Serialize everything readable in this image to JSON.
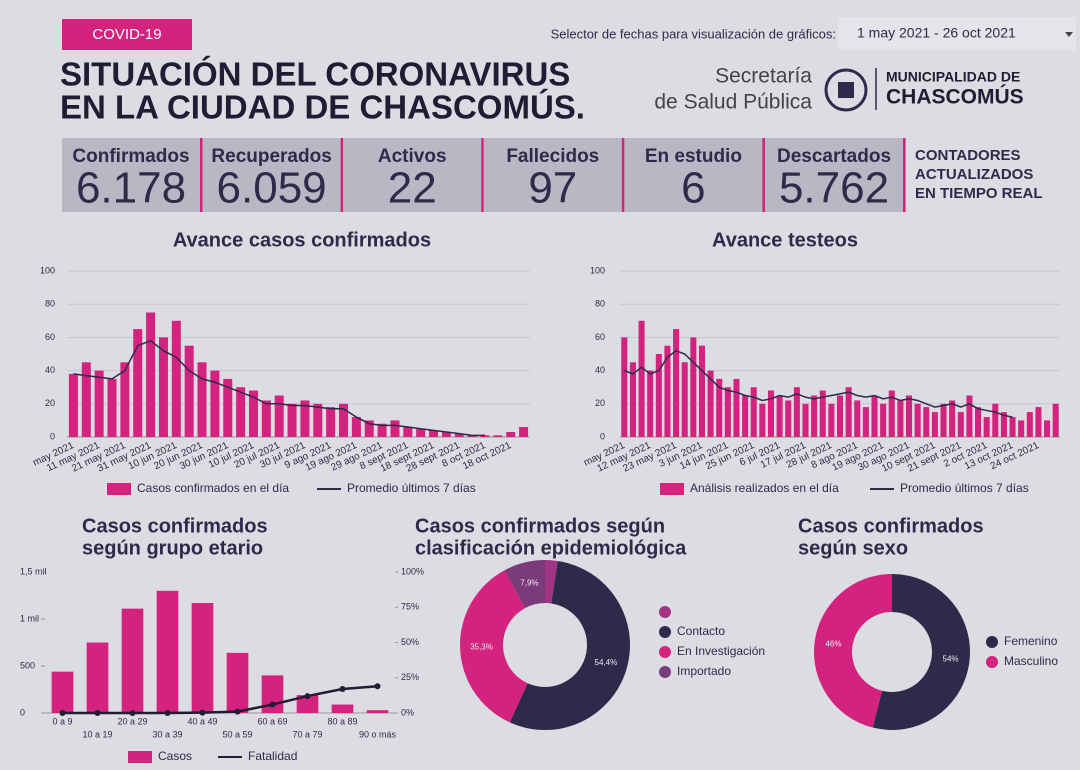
{
  "header": {
    "badge": "COVID-19",
    "title": [
      "SITUACIÓN DEL CORONAVIRUS",
      "EN LA CIUDAD DE CHASCOMÚS."
    ],
    "selector_label": "Selector de fechas para visualización de gráficos:",
    "date_range": "1 may 2021 - 26 oct 2021",
    "logo": [
      "Secretaría",
      "de Salud Pública",
      "MUNICIPALIDAD DE",
      "CHASCOMÚS"
    ]
  },
  "counters": {
    "items": [
      {
        "label": "Confirmados",
        "value": "6.178"
      },
      {
        "label": "Recuperados",
        "value": "6.059"
      },
      {
        "label": "Activos",
        "value": "22"
      },
      {
        "label": "Fallecidos",
        "value": "97"
      },
      {
        "label": "En estudio",
        "value": "6"
      },
      {
        "label": "Descartados",
        "value": "5.762"
      }
    ],
    "note": [
      "CONTADORES",
      "ACTUALIZADOS",
      "EN TIEMPO REAL"
    ]
  },
  "chart_data": [
    {
      "type": "combo",
      "title": [
        "Avance casos confirmados"
      ],
      "grid": true,
      "ylim": [
        0,
        100
      ],
      "yticks": [
        0,
        20,
        40,
        60,
        80,
        100
      ],
      "categories": [
        "may 2021",
        null,
        "11 may 2021",
        null,
        "21 may 2021",
        null,
        "31 may 2021",
        null,
        "10 jun 2021",
        null,
        "20 jun 2021",
        null,
        "30 jun 2021",
        null,
        "10 jul 2021",
        null,
        "20 jul 2021",
        null,
        "30 jul 2021",
        null,
        "9 ago 2021",
        null,
        "19 ago 2021",
        null,
        "29 ago 2021",
        null,
        "8 sept 2021",
        null,
        "18 sept 2021",
        null,
        "28 sept 2021",
        null,
        "8 oct 2021",
        null,
        "18 oct 2021",
        null
      ],
      "series": [
        {
          "name": "Casos confirmados en el día",
          "type": "bar",
          "color": "#d4237e",
          "values": [
            38,
            45,
            40,
            35,
            45,
            65,
            75,
            60,
            70,
            55,
            45,
            40,
            35,
            30,
            28,
            22,
            25,
            20,
            22,
            20,
            18,
            20,
            12,
            10,
            8,
            10,
            6,
            5,
            4,
            3,
            2,
            1,
            1,
            1,
            3,
            6
          ]
        },
        {
          "name": "Promedio últimos 7 días",
          "type": "line",
          "color": "#2d2a4a",
          "values": [
            38,
            37,
            36,
            35,
            40,
            55,
            58,
            52,
            48,
            40,
            35,
            33,
            30,
            27,
            24,
            20,
            20,
            19,
            19,
            18,
            17,
            17,
            12,
            8,
            7,
            7,
            6,
            5,
            4,
            3,
            2,
            1,
            1,
            null,
            null,
            null
          ]
        }
      ]
    },
    {
      "type": "combo",
      "title": [
        "Avance testeos"
      ],
      "grid": true,
      "ylim": [
        0,
        100
      ],
      "yticks": [
        0,
        20,
        40,
        60,
        80,
        100
      ],
      "categories": [
        "may 2021",
        null,
        null,
        "12 may 2021",
        null,
        null,
        "23 may 2021",
        null,
        null,
        "3 jun 2021",
        null,
        null,
        "14 jun 2021",
        null,
        null,
        "25 jun 2021",
        null,
        null,
        "6 jul 2021",
        null,
        null,
        "17 jul 2021",
        null,
        null,
        "28 jul 2021",
        null,
        null,
        "8 ago 2021",
        null,
        null,
        "19 ago 2021",
        null,
        null,
        "30 ago 2021",
        null,
        null,
        "10 sept 2021",
        null,
        null,
        "21 sept 2021",
        null,
        null,
        "2 oct 2021",
        null,
        null,
        "13 oct 2021",
        null,
        null,
        "24 oct 2021",
        null,
        null
      ],
      "series": [
        {
          "name": "Análisis realizados en el día",
          "type": "bar",
          "color": "#d4237e",
          "values": [
            60,
            45,
            70,
            40,
            50,
            55,
            65,
            45,
            60,
            55,
            40,
            35,
            30,
            35,
            25,
            30,
            20,
            28,
            25,
            22,
            30,
            20,
            25,
            28,
            20,
            25,
            30,
            22,
            18,
            25,
            20,
            28,
            22,
            25,
            20,
            18,
            15,
            20,
            22,
            15,
            25,
            18,
            12,
            20,
            15,
            12,
            10,
            15,
            18,
            10,
            20
          ]
        },
        {
          "name": "Promedio últimos 7 días",
          "type": "line",
          "color": "#2d2a4a",
          "values": [
            40,
            38,
            42,
            38,
            40,
            48,
            52,
            50,
            45,
            40,
            35,
            30,
            28,
            27,
            25,
            24,
            22,
            23,
            25,
            24,
            26,
            24,
            23,
            24,
            25,
            26,
            27,
            25,
            24,
            25,
            23,
            24,
            22,
            23,
            22,
            20,
            18,
            19,
            20,
            18,
            20,
            17,
            16,
            15,
            13,
            12,
            null,
            null,
            null,
            null,
            null
          ]
        }
      ]
    },
    {
      "type": "combo",
      "title": [
        "Casos confirmados",
        "según grupo etario"
      ],
      "grid": false,
      "ylim": [
        0,
        1500
      ],
      "yticks": [
        0,
        500,
        {
          "value": 1000,
          "label": "1 mil"
        },
        {
          "value": 1500,
          "label": "1,5 mil"
        }
      ],
      "y2lim": [
        0,
        100
      ],
      "y2ticks": [
        {
          "value": 0,
          "label": "0%"
        },
        {
          "value": 25,
          "label": "25%"
        },
        {
          "value": 50,
          "label": "50%"
        },
        {
          "value": 75,
          "label": "75%"
        },
        {
          "value": 100,
          "label": "100%"
        }
      ],
      "categories": [
        "0 a 9",
        "10 a 19",
        "20 a 29",
        "30 a 39",
        "40 a 49",
        "50 a 59",
        "60 a 69",
        "70 a 79",
        "80 a 89",
        "90 o más"
      ],
      "series": [
        {
          "name": "Casos",
          "type": "bar",
          "color": "#d4237e",
          "values": [
            440,
            750,
            1110,
            1300,
            1170,
            640,
            400,
            190,
            90,
            30
          ]
        },
        {
          "name": "Fatalidad",
          "type": "line",
          "axis": "y2",
          "color": "#1f1c33",
          "values": [
            0,
            0,
            0,
            0,
            0.3,
            1,
            6,
            12,
            17,
            19
          ]
        }
      ]
    },
    {
      "type": "donut",
      "title": [
        "Casos confirmados según",
        "clasificación epidemiológica"
      ],
      "categories": [
        null,
        "Contacto",
        "En Investigación",
        "Importado"
      ],
      "values": [
        2.4,
        54.4,
        35.3,
        7.9
      ],
      "value_labels": [
        null,
        "54,4%",
        "35,3%",
        "7,9%"
      ],
      "colors": [
        "#a03585",
        "#2d2a4a",
        "#d4237e",
        "#7b3a7a"
      ]
    },
    {
      "type": "donut",
      "title": [
        "Casos confirmados",
        "según sexo"
      ],
      "categories": [
        "Femenino",
        "Masculino"
      ],
      "values": [
        54,
        46
      ],
      "value_labels": [
        "54%",
        "46%"
      ],
      "colors": [
        "#2d2a4a",
        "#d4237e"
      ]
    }
  ]
}
